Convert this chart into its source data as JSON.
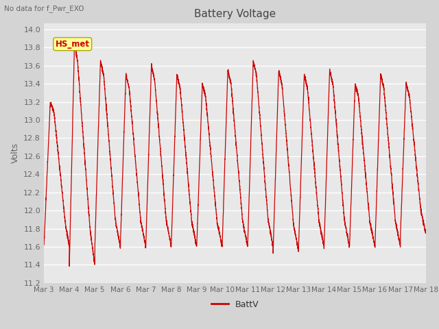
{
  "title": "Battery Voltage",
  "top_left_text": "No data for f_Pwr_EXO",
  "ylabel": "Volts",
  "legend_label": "BattV",
  "legend_color": "#cc0000",
  "line_color": "#cc0000",
  "fig_facecolor": "#d4d4d4",
  "plot_facecolor": "#e8e8e8",
  "ylim": [
    11.2,
    14.07
  ],
  "yticks": [
    11.2,
    11.4,
    11.6,
    11.8,
    12.0,
    12.2,
    12.4,
    12.6,
    12.8,
    13.0,
    13.2,
    13.4,
    13.6,
    13.8,
    14.0
  ],
  "xtick_labels": [
    "Mar 3",
    "Mar 4",
    "Mar 5",
    "Mar 6",
    "Mar 7",
    "Mar 8",
    "Mar 9",
    "Mar 10",
    "Mar 11",
    "Mar 12",
    "Mar 13",
    "Mar 14",
    "Mar 15",
    "Mar 16",
    "Mar 17",
    "Mar 18"
  ],
  "hs_met_label": "HS_met",
  "hs_met_bg": "#ffff99",
  "hs_met_border": "#aaaa00",
  "hs_met_text_color": "#cc0000",
  "grid_color": "#ffffff",
  "tick_color": "#666666",
  "title_color": "#444444",
  "day_params": [
    {
      "peak": 13.2,
      "trough": 11.6,
      "rise": 0.25,
      "plateau": 0.15,
      "fall": 0.45,
      "drop": 0.15
    },
    {
      "peak": 13.85,
      "trough": 11.4,
      "rise": 0.2,
      "plateau": 0.12,
      "fall": 0.5,
      "drop": 0.18
    },
    {
      "peak": 13.65,
      "trough": 11.6,
      "rise": 0.22,
      "plateau": 0.13,
      "fall": 0.45,
      "drop": 0.2
    },
    {
      "peak": 13.5,
      "trough": 11.6,
      "rise": 0.22,
      "plateau": 0.13,
      "fall": 0.45,
      "drop": 0.2
    },
    {
      "peak": 13.6,
      "trough": 11.6,
      "rise": 0.22,
      "plateau": 0.13,
      "fall": 0.45,
      "drop": 0.2
    },
    {
      "peak": 13.5,
      "trough": 11.6,
      "rise": 0.22,
      "plateau": 0.13,
      "fall": 0.45,
      "drop": 0.2
    },
    {
      "peak": 13.4,
      "trough": 11.6,
      "rise": 0.22,
      "plateau": 0.13,
      "fall": 0.45,
      "drop": 0.2
    },
    {
      "peak": 13.55,
      "trough": 11.6,
      "rise": 0.22,
      "plateau": 0.13,
      "fall": 0.45,
      "drop": 0.2
    },
    {
      "peak": 13.65,
      "trough": 11.6,
      "rise": 0.22,
      "plateau": 0.13,
      "fall": 0.45,
      "drop": 0.2
    },
    {
      "peak": 13.55,
      "trough": 11.55,
      "rise": 0.22,
      "plateau": 0.13,
      "fall": 0.45,
      "drop": 0.2
    },
    {
      "peak": 13.5,
      "trough": 11.6,
      "rise": 0.22,
      "plateau": 0.13,
      "fall": 0.45,
      "drop": 0.2
    },
    {
      "peak": 13.55,
      "trough": 11.6,
      "rise": 0.22,
      "plateau": 0.13,
      "fall": 0.45,
      "drop": 0.2
    },
    {
      "peak": 13.4,
      "trough": 11.6,
      "rise": 0.22,
      "plateau": 0.13,
      "fall": 0.45,
      "drop": 0.2
    },
    {
      "peak": 13.5,
      "trough": 11.6,
      "rise": 0.22,
      "plateau": 0.13,
      "fall": 0.45,
      "drop": 0.2
    },
    {
      "peak": 13.4,
      "trough": 11.75,
      "rise": 0.22,
      "plateau": 0.13,
      "fall": 0.45,
      "drop": 0.2
    }
  ]
}
